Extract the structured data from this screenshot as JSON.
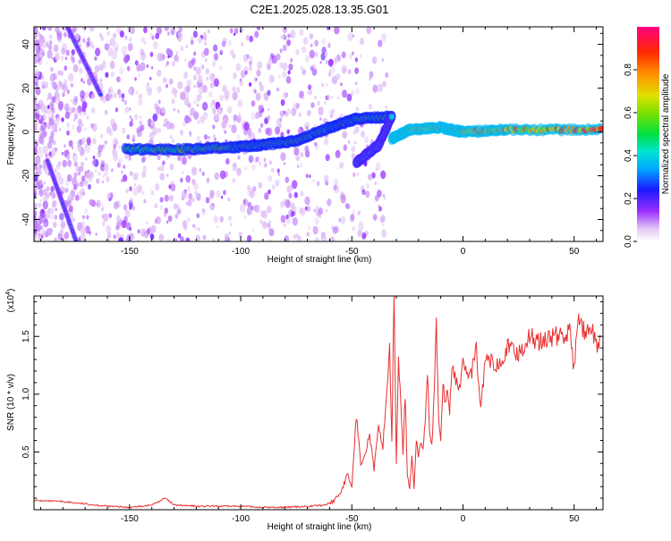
{
  "title": "C2E1.2025.028.13.35.G01",
  "colors": {
    "snr_line": "#e83030",
    "axis": "#000000",
    "background": "#ffffff"
  },
  "chart_data": [
    {
      "type": "heatmap",
      "name": "spectrogram",
      "xlabel": "Height of straight line (km)",
      "ylabel": "Frequency (Hz)",
      "xlim": [
        -193,
        63
      ],
      "ylim": [
        -50,
        48
      ],
      "x_ticks": [
        -150,
        -100,
        -50,
        0,
        50
      ],
      "y_ticks": [
        -40,
        -20,
        0,
        20,
        40
      ],
      "colorbar": {
        "label": "Normalized spectral amplitude",
        "range": [
          0,
          1
        ],
        "ticks": [
          "0.0",
          "0.2",
          "0.4",
          "0.6",
          "0.8"
        ]
      },
      "features": [
        {
          "kind": "steep_trace",
          "points": [
            [
              -178,
              48
            ],
            [
              -163,
              17
            ]
          ],
          "amplitude": 0.25
        },
        {
          "kind": "steep_trace",
          "points": [
            [
              -187,
              -13
            ],
            [
              -174,
              -50
            ]
          ],
          "amplitude": 0.25
        },
        {
          "kind": "main_trace",
          "points": [
            [
              -152,
              -8
            ],
            [
              -125,
              -8
            ],
            [
              -104,
              -7
            ],
            [
              -90,
              -6
            ],
            [
              -75,
              -4
            ],
            [
              -60,
              2
            ],
            [
              -48,
              6
            ],
            [
              -32,
              7
            ]
          ],
          "amplitude": 0.55
        },
        {
          "kind": "branch_trace",
          "points": [
            [
              -48,
              -14
            ],
            [
              -38,
              -6
            ],
            [
              -32,
              7
            ]
          ],
          "amplitude": 0.45
        },
        {
          "kind": "main_trace",
          "points": [
            [
              -32,
              -3
            ],
            [
              -24,
              1
            ],
            [
              -10,
              2
            ],
            [
              0,
              0
            ],
            [
              20,
              1
            ],
            [
              62,
              1
            ]
          ],
          "amplitude": 0.8
        }
      ]
    },
    {
      "type": "line",
      "name": "snr",
      "xlabel": "Height of straight line (km)",
      "ylabel": "SNR (10 * v/v)",
      "multiplier_label": "(x10",
      "multiplier_exp": "4",
      "multiplier_close": ")",
      "xlim": [
        -193,
        63
      ],
      "ylim": [
        0,
        1.85
      ],
      "x_ticks": [
        -150,
        -100,
        -50,
        0,
        50
      ],
      "y_ticks": [
        0.5,
        1.0,
        1.5
      ],
      "x_tick_labels": [
        "-150",
        "-100",
        "-50",
        "0",
        "50"
      ],
      "y_tick_labels": [
        "0.5",
        "1.0",
        "1.5"
      ],
      "x": [
        -193,
        -180,
        -170,
        -160,
        -150,
        -140,
        -134,
        -130,
        -120,
        -110,
        -100,
        -90,
        -80,
        -70,
        -62,
        -58,
        -55,
        -52,
        -50,
        -48,
        -46,
        -44,
        -42,
        -40,
        -38,
        -36,
        -34,
        -33,
        -32,
        -31,
        -30,
        -29,
        -28,
        -27,
        -26,
        -25,
        -24,
        -23,
        -22,
        -21,
        -20,
        -19,
        -18,
        -17,
        -16,
        -15,
        -14,
        -13,
        -12,
        -11,
        -10,
        -9,
        -8,
        -7,
        -6,
        -5,
        -4,
        -2,
        0,
        2,
        4,
        6,
        8,
        10,
        15,
        20,
        25,
        30,
        35,
        40,
        45,
        48,
        50,
        52,
        55,
        58,
        60,
        62
      ],
      "y": [
        0.08,
        0.07,
        0.05,
        0.03,
        0.02,
        0.04,
        0.1,
        0.04,
        0.03,
        0.03,
        0.03,
        0.02,
        0.02,
        0.03,
        0.04,
        0.08,
        0.15,
        0.3,
        0.2,
        0.82,
        0.4,
        0.5,
        0.65,
        0.35,
        0.7,
        0.55,
        1.1,
        1.4,
        0.6,
        1.85,
        0.4,
        1.35,
        0.9,
        0.5,
        1.0,
        0.3,
        0.2,
        0.45,
        0.2,
        0.6,
        0.45,
        0.6,
        0.5,
        0.8,
        1.2,
        0.7,
        0.55,
        0.95,
        1.6,
        0.8,
        0.6,
        1.1,
        0.9,
        1.05,
        0.85,
        1.25,
        1.2,
        1.0,
        1.3,
        1.15,
        1.2,
        1.4,
        0.85,
        1.3,
        1.25,
        1.4,
        1.35,
        1.5,
        1.45,
        1.5,
        1.5,
        1.55,
        1.2,
        1.7,
        1.5,
        1.55,
        1.4,
        1.5
      ]
    }
  ]
}
